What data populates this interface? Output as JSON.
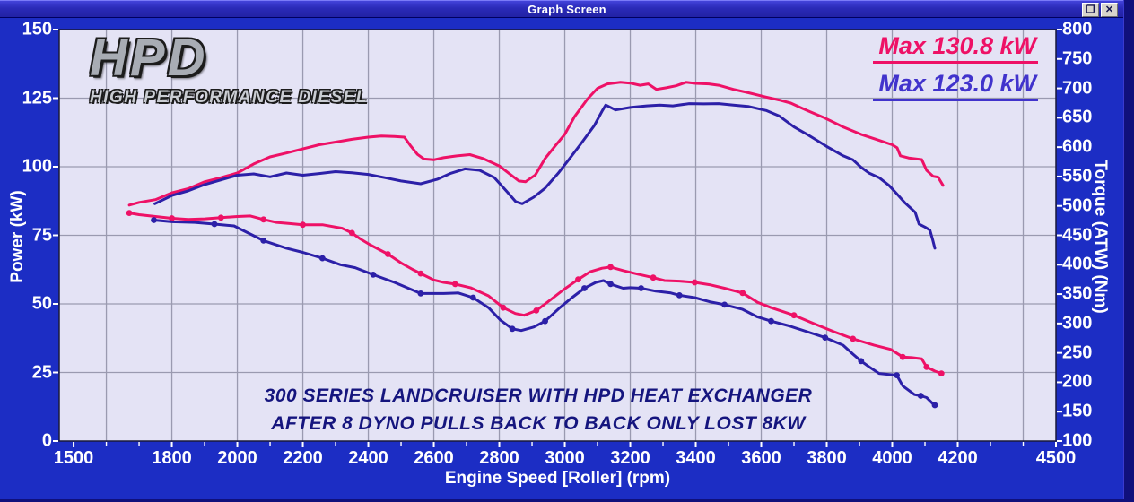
{
  "window": {
    "title": "Graph Screen"
  },
  "branding": {
    "logo_main": "HPD",
    "logo_sub": "HIGH PERFORMANCE DIESEL"
  },
  "legend": [
    {
      "label": "Max 130.8 kW",
      "color": "#ee1166"
    },
    {
      "label": "Max 123.0 kW",
      "color": "#4133cc"
    }
  ],
  "annotation": {
    "line1": "300 SERIES LANDCRUISER WITH HPD HEAT EXCHANGER",
    "line2": "AFTER 8 DYNO PULLS BACK TO BACK ONLY LOST 8KW",
    "color": "#15157e"
  },
  "chart_data": {
    "type": "line",
    "xlabel": "Engine Speed [Roller] (rpm)",
    "ylabel_left": "Power (kW)",
    "ylabel_right": "Torque (ATW) (Nm)",
    "xlim": [
      1456,
      4500
    ],
    "ylim_left": [
      0,
      150
    ],
    "ylim_right": [
      100,
      800
    ],
    "x_ticks": [
      1500,
      1800,
      2000,
      2200,
      2400,
      2600,
      2800,
      3000,
      3200,
      3400,
      3600,
      3800,
      4000,
      4200,
      4500
    ],
    "x_minor_tick_step": 100,
    "y_left_ticks": [
      0,
      25,
      50,
      75,
      100,
      125,
      150
    ],
    "y_right_ticks": [
      100,
      150,
      200,
      250,
      300,
      350,
      400,
      450,
      500,
      550,
      600,
      650,
      700,
      750,
      800
    ],
    "x_grid": {
      "from": 1600,
      "to": 4400,
      "step": 200
    },
    "y_grid": [
      25,
      50,
      75,
      100,
      125
    ],
    "plot_bg": "#e4e3f5",
    "grid_color": "#9a9ab0",
    "border_color": "#1a1a3a",
    "series": [
      {
        "name": "power-max-130.8kW",
        "axis": "left",
        "color": "#ee1166",
        "markers": false,
        "max_label": "Max 130.8 kW",
        "points": [
          [
            1670,
            86
          ],
          [
            1700,
            87
          ],
          [
            1750,
            88
          ],
          [
            1800,
            90.5
          ],
          [
            1850,
            92
          ],
          [
            1900,
            94.5
          ],
          [
            1950,
            96
          ],
          [
            2000,
            97.7
          ],
          [
            2050,
            101
          ],
          [
            2100,
            103.6
          ],
          [
            2150,
            105
          ],
          [
            2200,
            106.5
          ],
          [
            2250,
            108
          ],
          [
            2300,
            109
          ],
          [
            2350,
            110
          ],
          [
            2400,
            110.8
          ],
          [
            2440,
            111.2
          ],
          [
            2480,
            111
          ],
          [
            2510,
            110.8
          ],
          [
            2530,
            107.5
          ],
          [
            2550,
            104.5
          ],
          [
            2570,
            102.8
          ],
          [
            2600,
            102.5
          ],
          [
            2630,
            103.3
          ],
          [
            2665,
            103.9
          ],
          [
            2710,
            104.4
          ],
          [
            2750,
            103
          ],
          [
            2800,
            100.3
          ],
          [
            2830,
            97.5
          ],
          [
            2860,
            94.8
          ],
          [
            2880,
            94.5
          ],
          [
            2910,
            97
          ],
          [
            2940,
            103
          ],
          [
            2970,
            107.5
          ],
          [
            3000,
            111.8
          ],
          [
            3030,
            118.3
          ],
          [
            3070,
            124.8
          ],
          [
            3100,
            128.6
          ],
          [
            3130,
            130.2
          ],
          [
            3170,
            130.8
          ],
          [
            3200,
            130.5
          ],
          [
            3230,
            129.7
          ],
          [
            3255,
            130.2
          ],
          [
            3280,
            128.2
          ],
          [
            3310,
            128.8
          ],
          [
            3340,
            129.5
          ],
          [
            3370,
            130.8
          ],
          [
            3400,
            130.4
          ],
          [
            3440,
            130.2
          ],
          [
            3470,
            129.7
          ],
          [
            3515,
            128.2
          ],
          [
            3560,
            127
          ],
          [
            3615,
            125.4
          ],
          [
            3655,
            124.3
          ],
          [
            3690,
            123.2
          ],
          [
            3740,
            120.5
          ],
          [
            3795,
            117.7
          ],
          [
            3850,
            114.5
          ],
          [
            3905,
            111.8
          ],
          [
            3960,
            109.6
          ],
          [
            4000,
            108
          ],
          [
            4015,
            106.9
          ],
          [
            4025,
            104
          ],
          [
            4050,
            103.2
          ],
          [
            4090,
            102.6
          ],
          [
            4105,
            98.7
          ],
          [
            4125,
            96.5
          ],
          [
            4140,
            96.2
          ],
          [
            4155,
            93.2
          ]
        ]
      },
      {
        "name": "power-max-123.0kW",
        "axis": "left",
        "color": "#2c20a8",
        "markers": false,
        "max_label": "Max 123.0 kW",
        "points": [
          [
            1748,
            86.5
          ],
          [
            1800,
            89.5
          ],
          [
            1850,
            91.2
          ],
          [
            1900,
            93.5
          ],
          [
            1950,
            95.2
          ],
          [
            2000,
            96.9
          ],
          [
            2050,
            97.4
          ],
          [
            2100,
            96.3
          ],
          [
            2150,
            97.7
          ],
          [
            2200,
            96.9
          ],
          [
            2250,
            97.5
          ],
          [
            2300,
            98.2
          ],
          [
            2350,
            97.8
          ],
          [
            2400,
            97.2
          ],
          [
            2450,
            96
          ],
          [
            2500,
            94.8
          ],
          [
            2560,
            93.8
          ],
          [
            2610,
            95.4
          ],
          [
            2650,
            97.5
          ],
          [
            2695,
            99.2
          ],
          [
            2740,
            98.7
          ],
          [
            2785,
            96
          ],
          [
            2822,
            91.1
          ],
          [
            2850,
            87.3
          ],
          [
            2870,
            86.5
          ],
          [
            2905,
            88.9
          ],
          [
            2940,
            92.2
          ],
          [
            2980,
            97.6
          ],
          [
            3015,
            103
          ],
          [
            3050,
            108.5
          ],
          [
            3090,
            115
          ],
          [
            3115,
            120.5
          ],
          [
            3125,
            122.5
          ],
          [
            3155,
            120.7
          ],
          [
            3200,
            121.6
          ],
          [
            3250,
            122.2
          ],
          [
            3290,
            122.5
          ],
          [
            3330,
            122.2
          ],
          [
            3380,
            123
          ],
          [
            3425,
            122.9
          ],
          [
            3470,
            123
          ],
          [
            3515,
            122.5
          ],
          [
            3560,
            122
          ],
          [
            3615,
            120.5
          ],
          [
            3655,
            118.5
          ],
          [
            3700,
            114.5
          ],
          [
            3740,
            111.8
          ],
          [
            3770,
            109.6
          ],
          [
            3800,
            107.4
          ],
          [
            3850,
            104
          ],
          [
            3880,
            102.5
          ],
          [
            3905,
            99.8
          ],
          [
            3930,
            97.6
          ],
          [
            3960,
            96
          ],
          [
            3990,
            93.2
          ],
          [
            4015,
            90
          ],
          [
            4040,
            86.7
          ],
          [
            4070,
            83.4
          ],
          [
            4082,
            79.1
          ],
          [
            4100,
            78
          ],
          [
            4115,
            76.9
          ],
          [
            4123,
            73.6
          ],
          [
            4130,
            70.3
          ]
        ]
      },
      {
        "name": "torque-run-1",
        "axis": "right",
        "color": "#ee1166",
        "markers": true,
        "points": [
          [
            1670,
            488
          ],
          [
            1700,
            485
          ],
          [
            1750,
            482
          ],
          [
            1800,
            479
          ],
          [
            1850,
            477
          ],
          [
            1900,
            478
          ],
          [
            1950,
            480
          ],
          [
            2000,
            482
          ],
          [
            2040,
            483
          ],
          [
            2080,
            477
          ],
          [
            2120,
            472
          ],
          [
            2160,
            470
          ],
          [
            2200,
            468
          ],
          [
            2260,
            468
          ],
          [
            2320,
            462
          ],
          [
            2350,
            454
          ],
          [
            2375,
            444
          ],
          [
            2405,
            434
          ],
          [
            2460,
            418
          ],
          [
            2500,
            403
          ],
          [
            2535,
            392
          ],
          [
            2560,
            385
          ],
          [
            2600,
            374
          ],
          [
            2630,
            370
          ],
          [
            2665,
            367
          ],
          [
            2712,
            361
          ],
          [
            2767,
            347
          ],
          [
            2812,
            327
          ],
          [
            2849,
            317
          ],
          [
            2876,
            314
          ],
          [
            2913,
            322
          ],
          [
            2949,
            337
          ],
          [
            2995,
            357
          ],
          [
            3041,
            375
          ],
          [
            3077,
            388
          ],
          [
            3114,
            394
          ],
          [
            3140,
            396
          ],
          [
            3178,
            390
          ],
          [
            3223,
            384
          ],
          [
            3270,
            378
          ],
          [
            3305,
            373
          ],
          [
            3350,
            372
          ],
          [
            3397,
            370
          ],
          [
            3442,
            366
          ],
          [
            3488,
            360
          ],
          [
            3543,
            352
          ],
          [
            3589,
            336
          ],
          [
            3630,
            327
          ],
          [
            3700,
            314
          ],
          [
            3760,
            300
          ],
          [
            3822,
            286
          ],
          [
            3880,
            274
          ],
          [
            3945,
            263
          ],
          [
            3995,
            256
          ],
          [
            4032,
            243
          ],
          [
            4060,
            242
          ],
          [
            4090,
            240
          ],
          [
            4105,
            226
          ],
          [
            4130,
            219
          ],
          [
            4150,
            215
          ]
        ]
      },
      {
        "name": "torque-run-8",
        "axis": "right",
        "color": "#2c20a8",
        "markers": true,
        "points": [
          [
            1745,
            476
          ],
          [
            1800,
            473
          ],
          [
            1870,
            472
          ],
          [
            1930,
            469
          ],
          [
            1990,
            466
          ],
          [
            2015,
            459
          ],
          [
            2080,
            441
          ],
          [
            2150,
            428
          ],
          [
            2200,
            421
          ],
          [
            2260,
            411
          ],
          [
            2315,
            400
          ],
          [
            2360,
            395
          ],
          [
            2415,
            383
          ],
          [
            2480,
            370
          ],
          [
            2535,
            357
          ],
          [
            2560,
            351
          ],
          [
            2630,
            351
          ],
          [
            2675,
            352
          ],
          [
            2720,
            344
          ],
          [
            2767,
            327
          ],
          [
            2803,
            306
          ],
          [
            2840,
            291
          ],
          [
            2867,
            288
          ],
          [
            2905,
            294
          ],
          [
            2940,
            304
          ],
          [
            2985,
            327
          ],
          [
            3022,
            344
          ],
          [
            3060,
            360
          ],
          [
            3095,
            370
          ],
          [
            3118,
            373
          ],
          [
            3140,
            367
          ],
          [
            3178,
            360
          ],
          [
            3200,
            361
          ],
          [
            3233,
            360
          ],
          [
            3278,
            355
          ],
          [
            3324,
            352
          ],
          [
            3350,
            348
          ],
          [
            3397,
            344
          ],
          [
            3442,
            337
          ],
          [
            3488,
            332
          ],
          [
            3543,
            324
          ],
          [
            3589,
            311
          ],
          [
            3630,
            304
          ],
          [
            3685,
            296
          ],
          [
            3740,
            286
          ],
          [
            3795,
            276
          ],
          [
            3850,
            263
          ],
          [
            3880,
            248
          ],
          [
            3905,
            236
          ],
          [
            3930,
            226
          ],
          [
            3960,
            215
          ],
          [
            4014,
            212
          ],
          [
            4032,
            194
          ],
          [
            4068,
            179
          ],
          [
            4087,
            177
          ],
          [
            4105,
            174
          ],
          [
            4123,
            164
          ],
          [
            4130,
            161
          ]
        ]
      }
    ]
  }
}
